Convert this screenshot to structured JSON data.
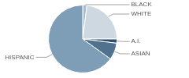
{
  "chart_data": {
    "type": "pie",
    "categories": [
      "BLACK",
      "WHITE",
      "A.I.",
      "ASIAN",
      "HISPANIC"
    ],
    "values": [
      2,
      23,
      2,
      8,
      65
    ],
    "colors": [
      "#a9bccb",
      "#cdd8e1",
      "#2f4f6b",
      "#51728e",
      "#7e9db6"
    ]
  }
}
